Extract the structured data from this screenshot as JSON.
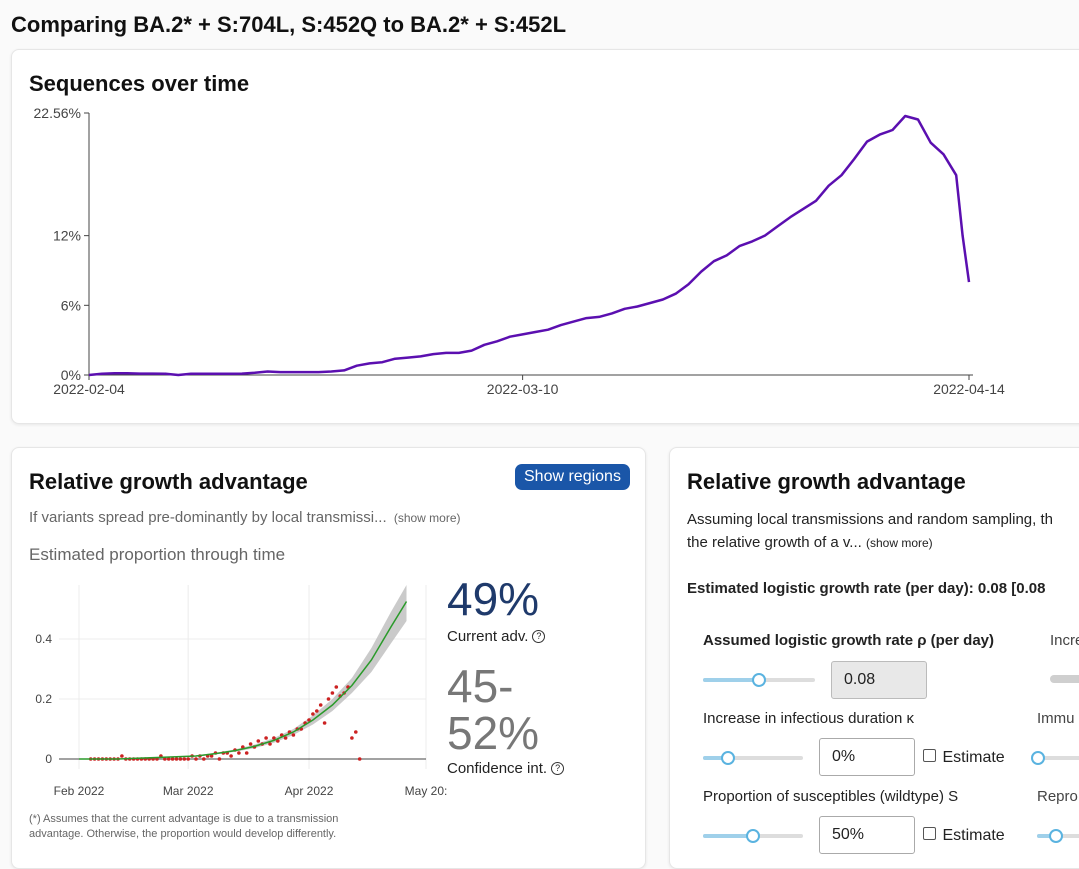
{
  "page": {
    "title": "Comparing BA.2* + S:704L, S:452Q to BA.2* + S:452L"
  },
  "sequences": {
    "title": "Sequences over time",
    "chart_data": {
      "type": "line",
      "title": "Sequences over time",
      "xlabel": "",
      "ylabel": "",
      "y_tick_labels": [
        "0%",
        "6%",
        "12%",
        "22.56%"
      ],
      "y_ticks": [
        0,
        6,
        12,
        22.56
      ],
      "x_tick_labels": [
        "2022-02-04",
        "2022-03-10",
        "2022-04-14"
      ],
      "x_tick_days": [
        0,
        34,
        69
      ],
      "ylim": [
        0,
        22.56
      ],
      "grid": false,
      "line_color": "#5b0fb0",
      "series": [
        {
          "x_days": [
            0,
            1,
            2,
            3,
            4,
            5,
            6,
            7,
            8,
            9,
            10,
            11,
            12,
            13,
            14,
            15,
            16,
            17,
            18,
            19,
            20,
            21,
            22,
            23,
            24,
            25,
            26,
            27,
            28,
            29,
            30,
            31,
            32,
            33,
            34,
            35,
            36,
            37,
            38,
            39,
            40,
            41,
            42,
            43,
            44,
            45,
            46,
            47,
            48,
            49,
            50,
            51,
            52,
            53,
            54,
            55,
            56,
            57,
            58,
            59,
            60,
            61,
            62,
            63,
            64,
            65,
            66,
            67,
            68,
            68.5,
            69
          ],
          "values": [
            0.0,
            0.1,
            0.15,
            0.15,
            0.12,
            0.12,
            0.1,
            0.0,
            0.1,
            0.1,
            0.1,
            0.1,
            0.12,
            0.2,
            0.3,
            0.25,
            0.25,
            0.25,
            0.25,
            0.3,
            0.4,
            0.8,
            1.0,
            1.1,
            1.4,
            1.5,
            1.6,
            1.8,
            1.9,
            1.9,
            2.1,
            2.6,
            2.9,
            3.3,
            3.5,
            3.7,
            3.9,
            4.3,
            4.6,
            4.9,
            5.0,
            5.3,
            5.7,
            5.9,
            6.2,
            6.5,
            7.0,
            7.8,
            8.9,
            9.8,
            10.3,
            11.1,
            11.5,
            12.0,
            12.8,
            13.6,
            14.3,
            15.0,
            16.3,
            17.2,
            18.6,
            20.1,
            20.7,
            21.1,
            22.3,
            22.0,
            20.0,
            19.0,
            17.2,
            12.0,
            8.0
          ]
        }
      ]
    }
  },
  "left_card": {
    "title": "Relative growth advantage",
    "show_regions_label": "Show regions",
    "description": "If variants spread pre-dominantly by local transmissi...",
    "show_more": "(show more)",
    "subtitle": "Estimated proportion through time",
    "current_adv_value": "49%",
    "current_adv_label": "Current adv.",
    "ci_value_line1": "45-",
    "ci_value_line2": "52%",
    "ci_label": "Confidence int.",
    "help_glyph": "?",
    "footnote_line1": "(*) Assumes that the current advantage is due to a transmission",
    "footnote_line2": "advantage. Otherwise, the proportion would develop differently.",
    "chart_data": {
      "type": "scatter",
      "title": "",
      "xlabel": "",
      "ylabel": "",
      "x_tick_labels": [
        "Feb 2022",
        "Mar 2022",
        "Apr 2022",
        "May 20:"
      ],
      "x_tick_days": [
        0,
        28,
        59,
        89
      ],
      "y_tick_labels": [
        "0",
        "0.2",
        "0.4"
      ],
      "y_ticks": [
        0,
        0.2,
        0.4
      ],
      "ylim": [
        -0.02,
        0.58
      ],
      "grid": true,
      "points_color": "#cc2222",
      "fit_color": "#2a9a2a",
      "band_color": "#bdbdbd",
      "observed": {
        "x_days": [
          3,
          4,
          5,
          6,
          7,
          8,
          9,
          10,
          11,
          12,
          13,
          14,
          15,
          16,
          17,
          18,
          19,
          20,
          21,
          22,
          23,
          24,
          25,
          26,
          27,
          28,
          29,
          30,
          31,
          32,
          33,
          34,
          35,
          36,
          37,
          38,
          39,
          40,
          41,
          42,
          43,
          44,
          45,
          46,
          47,
          48,
          49,
          50,
          51,
          52,
          53,
          54,
          55,
          56,
          57,
          58,
          59,
          60,
          61,
          62,
          63,
          64,
          65,
          66,
          67,
          68,
          69,
          70,
          71,
          72
        ],
        "values": [
          0.0,
          0.0,
          0.0,
          0.0,
          0.0,
          0.0,
          0.0,
          0.0,
          0.01,
          0.0,
          0.0,
          0.0,
          0.0,
          0.0,
          0.0,
          0.0,
          0.0,
          0.0,
          0.01,
          0.0,
          0.0,
          0.0,
          0.0,
          0.0,
          0.0,
          0.0,
          0.01,
          0.0,
          0.01,
          0.0,
          0.01,
          0.01,
          0.02,
          0.0,
          0.02,
          0.02,
          0.01,
          0.03,
          0.02,
          0.04,
          0.02,
          0.05,
          0.04,
          0.06,
          0.05,
          0.07,
          0.05,
          0.07,
          0.06,
          0.08,
          0.07,
          0.09,
          0.08,
          0.1,
          0.1,
          0.12,
          0.13,
          0.15,
          0.16,
          0.18,
          0.12,
          0.2,
          0.22,
          0.24,
          0.21,
          0.22,
          0.24,
          0.07,
          0.09,
          0.0
        ]
      },
      "fit": {
        "x_days": [
          0,
          10,
          20,
          30,
          35,
          40,
          45,
          50,
          55,
          60,
          65,
          70,
          75,
          80,
          84
        ],
        "values": [
          0.0,
          0.0,
          0.005,
          0.01,
          0.018,
          0.028,
          0.042,
          0.062,
          0.09,
          0.13,
          0.18,
          0.245,
          0.33,
          0.44,
          0.525
        ],
        "lower": [
          0.0,
          0.0,
          0.004,
          0.008,
          0.015,
          0.024,
          0.036,
          0.054,
          0.08,
          0.115,
          0.16,
          0.22,
          0.29,
          0.385,
          0.46
        ],
        "upper": [
          0.0,
          0.0,
          0.006,
          0.012,
          0.021,
          0.032,
          0.048,
          0.07,
          0.1,
          0.145,
          0.2,
          0.27,
          0.37,
          0.49,
          0.58
        ]
      }
    }
  },
  "right_card": {
    "title": "Relative growth advantage",
    "description_line1": "Assuming local transmissions and random sampling, th",
    "description_line2": "the relative growth of a v...",
    "show_more": "(show more)",
    "estimated_rate_label": "Estimated logistic growth rate (per day): 0.08 [0.08",
    "assumed_rate_label": "Assumed logistic growth rate ρ (per day)",
    "assumed_rate_value": "0.08",
    "assumed_rate_level": 0.5,
    "cut_label_1": "Incre",
    "infectious_label": "Increase in infectious duration κ",
    "infectious_value": "0%",
    "infectious_level": 0.25,
    "cut_label_2": "Immu",
    "susceptibles_label": "Proportion of susceptibles (wildtype) S",
    "susceptibles_value": "50%",
    "susceptibles_level": 0.5,
    "cut_label_3": "Repro",
    "estimate_label": "Estimate"
  }
}
